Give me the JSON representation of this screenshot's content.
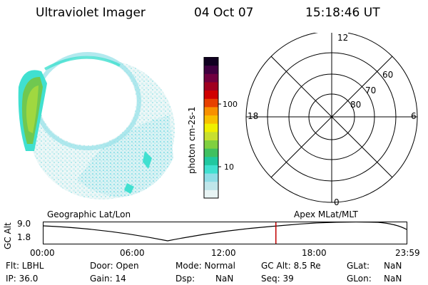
{
  "header": {
    "title": "Ultraviolet Imager",
    "date": "04 Oct 07",
    "time": "15:18:46 UT"
  },
  "colorbar": {
    "label": "photon cm-2s-1",
    "ticks": [
      "100",
      "10"
    ],
    "colors": [
      "#e8f4f4",
      "#bfe6ea",
      "#8fdde6",
      "#40e0d0",
      "#20c8a0",
      "#40c060",
      "#80d040",
      "#c8e030",
      "#f0f000",
      "#f8c000",
      "#f89000",
      "#e84000",
      "#d00000",
      "#a00020",
      "#700040",
      "#400040",
      "#100020"
    ]
  },
  "polar_grid": {
    "mlt_labels": [
      "12",
      "18",
      "6",
      "0"
    ],
    "lat_labels": [
      "60",
      "70",
      "80"
    ]
  },
  "timeline": {
    "left_label": "Geographic Lat/Lon",
    "right_label": "Apex  MLat/MLT",
    "y_axis_label": "GC Alt",
    "y_ticks": [
      "9.0",
      "1.8"
    ],
    "x_ticks": [
      "00:00",
      "06:00",
      "12:00",
      "18:00",
      "23:59"
    ],
    "marker_fraction": 0.64,
    "marker_color": "#c00000"
  },
  "status": {
    "filter": "Flt: LBHL",
    "ip": "IP: 36.0",
    "door": "Door: Open",
    "gain": "Gain: 14",
    "mode": "Mode: Normal",
    "dsp_label": "Dsp:",
    "dsp_value": "NaN",
    "gc_alt": "GC Alt: 8.5 Re",
    "seq": "Seq: 39",
    "glat_label": "GLat:",
    "glat_value": "NaN",
    "glon_label": "GLon:",
    "glon_value": "NaN"
  }
}
